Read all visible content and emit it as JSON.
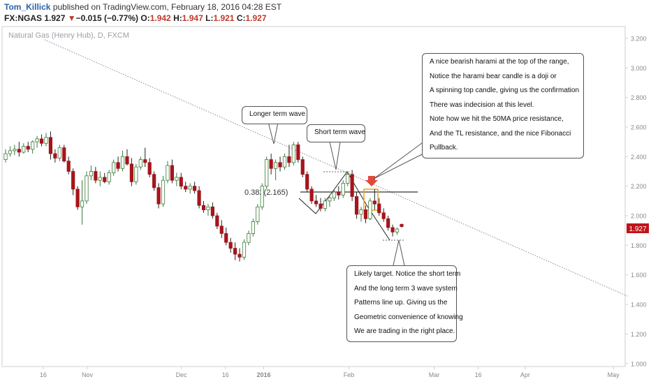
{
  "header": {
    "author": "Tom_Killick",
    "published": "published on TradingView.com, February 18, 2016 04:28 EST",
    "symbol": "FX:NGAS",
    "last": "1.927",
    "change": "−0.015 (−0.77%)",
    "o_label": "O:",
    "o_value": "1.942",
    "h_label": "H:",
    "h_value": "1.947",
    "l_label": "L:",
    "l_value": "1.921",
    "c_label": "C:",
    "c_value": "1.927",
    "down_arrow": "▼"
  },
  "watermark": "Natural Gas (Henry Hub), D, FXCM",
  "price_tag": "1.927",
  "fib_label": "0.382(2.165)",
  "annotations": {
    "longer_wave": "Longer term wave",
    "short_wave": "Short term wave",
    "harami": [
      "A nice bearish harami at the top of the range,",
      "Notice the harami bear candle is a doji or",
      "A spinning top candle, giving us the confirmation",
      "There was indecision at this level.",
      "Note how we hit the 50MA price resistance,",
      "And the TL resistance, and the nice Fibonacci",
      "Pullback."
    ],
    "target": [
      "Likely target. Notice the short term",
      "And the long term 3 wave system",
      "Patterns line up. Giving us the",
      "Geometric convenience of knowing",
      "We are trading in the right place."
    ]
  },
  "colors": {
    "up": "#ffffff",
    "up_border": "#3a7a3a",
    "down": "#a5151b",
    "axis_text": "#888888",
    "price_tag": "#c0141b",
    "highlight_box": "#f0a020"
  },
  "chart_data": {
    "type": "candlestick",
    "title": "Natural Gas (Henry Hub), D, FXCM",
    "symbol": "FX:NGAS",
    "ylim": [
      0.98,
      3.28
    ],
    "yticks": [
      "3.200",
      "3.000",
      "2.800",
      "2.600",
      "2.400",
      "2.200",
      "2.000",
      "1.800",
      "1.600",
      "1.400",
      "1.200",
      "1.000"
    ],
    "ytick_values": [
      3.2,
      3.0,
      2.8,
      2.6,
      2.4,
      2.2,
      2.0,
      1.8,
      1.6,
      1.4,
      1.2,
      1.0
    ],
    "xticks": [
      "16",
      "Nov",
      "Dec",
      "16",
      "2016",
      "Feb",
      "Mar",
      "16",
      "Apr",
      "May"
    ],
    "xtick_days": [
      14,
      29,
      61,
      76,
      89,
      118,
      147,
      162,
      178,
      208
    ],
    "xlim_days": [
      0,
      212
    ],
    "last_price": 1.927,
    "fib_level": 2.165,
    "candles": [
      {
        "o": 2.38,
        "h": 2.45,
        "l": 2.36,
        "c": 2.42
      },
      {
        "o": 2.42,
        "h": 2.47,
        "l": 2.4,
        "c": 2.44
      },
      {
        "o": 2.44,
        "h": 2.48,
        "l": 2.41,
        "c": 2.45
      },
      {
        "o": 2.45,
        "h": 2.5,
        "l": 2.4,
        "c": 2.43
      },
      {
        "o": 2.43,
        "h": 2.49,
        "l": 2.42,
        "c": 2.47
      },
      {
        "o": 2.47,
        "h": 2.5,
        "l": 2.43,
        "c": 2.45
      },
      {
        "o": 2.45,
        "h": 2.51,
        "l": 2.42,
        "c": 2.5
      },
      {
        "o": 2.5,
        "h": 2.54,
        "l": 2.46,
        "c": 2.52
      },
      {
        "o": 2.52,
        "h": 2.55,
        "l": 2.47,
        "c": 2.49
      },
      {
        "o": 2.49,
        "h": 2.56,
        "l": 2.47,
        "c": 2.53
      },
      {
        "o": 2.53,
        "h": 2.57,
        "l": 2.38,
        "c": 2.42
      },
      {
        "o": 2.42,
        "h": 2.45,
        "l": 2.36,
        "c": 2.39
      },
      {
        "o": 2.39,
        "h": 2.48,
        "l": 2.37,
        "c": 2.46
      },
      {
        "o": 2.46,
        "h": 2.48,
        "l": 2.36,
        "c": 2.37
      },
      {
        "o": 2.37,
        "h": 2.4,
        "l": 2.28,
        "c": 2.3
      },
      {
        "o": 2.3,
        "h": 2.32,
        "l": 2.14,
        "c": 2.18
      },
      {
        "o": 2.18,
        "h": 2.2,
        "l": 2.04,
        "c": 2.06
      },
      {
        "o": 2.06,
        "h": 2.24,
        "l": 1.94,
        "c": 2.1
      },
      {
        "o": 2.1,
        "h": 2.3,
        "l": 2.08,
        "c": 2.27
      },
      {
        "o": 2.27,
        "h": 2.34,
        "l": 2.24,
        "c": 2.3
      },
      {
        "o": 2.3,
        "h": 2.33,
        "l": 2.22,
        "c": 2.24
      },
      {
        "o": 2.24,
        "h": 2.3,
        "l": 2.2,
        "c": 2.26
      },
      {
        "o": 2.26,
        "h": 2.29,
        "l": 2.22,
        "c": 2.23
      },
      {
        "o": 2.23,
        "h": 2.31,
        "l": 2.21,
        "c": 2.29
      },
      {
        "o": 2.29,
        "h": 2.38,
        "l": 2.27,
        "c": 2.36
      },
      {
        "o": 2.36,
        "h": 2.4,
        "l": 2.3,
        "c": 2.32
      },
      {
        "o": 2.32,
        "h": 2.44,
        "l": 2.3,
        "c": 2.4
      },
      {
        "o": 2.4,
        "h": 2.45,
        "l": 2.34,
        "c": 2.35
      },
      {
        "o": 2.35,
        "h": 2.39,
        "l": 2.2,
        "c": 2.23
      },
      {
        "o": 2.23,
        "h": 2.35,
        "l": 2.21,
        "c": 2.33
      },
      {
        "o": 2.33,
        "h": 2.4,
        "l": 2.31,
        "c": 2.38
      },
      {
        "o": 2.38,
        "h": 2.46,
        "l": 2.33,
        "c": 2.36
      },
      {
        "o": 2.36,
        "h": 2.39,
        "l": 2.26,
        "c": 2.28
      },
      {
        "o": 2.28,
        "h": 2.3,
        "l": 2.17,
        "c": 2.19
      },
      {
        "o": 2.19,
        "h": 2.22,
        "l": 2.05,
        "c": 2.08
      },
      {
        "o": 2.08,
        "h": 2.27,
        "l": 2.06,
        "c": 2.24
      },
      {
        "o": 2.24,
        "h": 2.37,
        "l": 2.22,
        "c": 2.34
      },
      {
        "o": 2.34,
        "h": 2.38,
        "l": 2.22,
        "c": 2.24
      },
      {
        "o": 2.24,
        "h": 2.29,
        "l": 2.2,
        "c": 2.26
      },
      {
        "o": 2.26,
        "h": 2.29,
        "l": 2.18,
        "c": 2.2
      },
      {
        "o": 2.2,
        "h": 2.23,
        "l": 2.16,
        "c": 2.18
      },
      {
        "o": 2.18,
        "h": 2.22,
        "l": 2.15,
        "c": 2.2
      },
      {
        "o": 2.2,
        "h": 2.23,
        "l": 2.15,
        "c": 2.17
      },
      {
        "o": 2.17,
        "h": 2.2,
        "l": 2.05,
        "c": 2.07
      },
      {
        "o": 2.07,
        "h": 2.1,
        "l": 2.02,
        "c": 2.04
      },
      {
        "o": 2.04,
        "h": 2.08,
        "l": 2.0,
        "c": 2.06
      },
      {
        "o": 2.06,
        "h": 2.09,
        "l": 1.98,
        "c": 2.0
      },
      {
        "o": 2.0,
        "h": 2.02,
        "l": 1.91,
        "c": 1.93
      },
      {
        "o": 1.93,
        "h": 1.97,
        "l": 1.85,
        "c": 1.88
      },
      {
        "o": 1.88,
        "h": 1.92,
        "l": 1.8,
        "c": 1.82
      },
      {
        "o": 1.82,
        "h": 1.85,
        "l": 1.75,
        "c": 1.78
      },
      {
        "o": 1.78,
        "h": 1.82,
        "l": 1.7,
        "c": 1.74
      },
      {
        "o": 1.74,
        "h": 1.78,
        "l": 1.69,
        "c": 1.72
      },
      {
        "o": 1.72,
        "h": 1.84,
        "l": 1.7,
        "c": 1.82
      },
      {
        "o": 1.82,
        "h": 1.9,
        "l": 1.8,
        "c": 1.88
      },
      {
        "o": 1.88,
        "h": 1.98,
        "l": 1.86,
        "c": 1.96
      },
      {
        "o": 1.96,
        "h": 2.08,
        "l": 1.94,
        "c": 2.06
      },
      {
        "o": 2.06,
        "h": 2.22,
        "l": 2.04,
        "c": 2.2
      },
      {
        "o": 2.2,
        "h": 2.4,
        "l": 2.18,
        "c": 2.38
      },
      {
        "o": 2.38,
        "h": 2.42,
        "l": 2.28,
        "c": 2.32
      },
      {
        "o": 2.32,
        "h": 2.38,
        "l": 2.24,
        "c": 2.36
      },
      {
        "o": 2.36,
        "h": 2.4,
        "l": 2.3,
        "c": 2.33
      },
      {
        "o": 2.33,
        "h": 2.42,
        "l": 2.31,
        "c": 2.4
      },
      {
        "o": 2.4,
        "h": 2.48,
        "l": 2.33,
        "c": 2.36
      },
      {
        "o": 2.36,
        "h": 2.5,
        "l": 2.34,
        "c": 2.48
      },
      {
        "o": 2.48,
        "h": 2.5,
        "l": 2.36,
        "c": 2.38
      },
      {
        "o": 2.38,
        "h": 2.4,
        "l": 2.26,
        "c": 2.28
      },
      {
        "o": 2.28,
        "h": 2.3,
        "l": 2.16,
        "c": 2.18
      },
      {
        "o": 2.18,
        "h": 2.2,
        "l": 2.08,
        "c": 2.1
      },
      {
        "o": 2.1,
        "h": 2.14,
        "l": 2.06,
        "c": 2.08
      },
      {
        "o": 2.08,
        "h": 2.12,
        "l": 2.03,
        "c": 2.05
      },
      {
        "o": 2.05,
        "h": 2.12,
        "l": 2.03,
        "c": 2.1
      },
      {
        "o": 2.1,
        "h": 2.14,
        "l": 2.06,
        "c": 2.12
      },
      {
        "o": 2.12,
        "h": 2.18,
        "l": 2.1,
        "c": 2.16
      },
      {
        "o": 2.16,
        "h": 2.2,
        "l": 2.11,
        "c": 2.14
      },
      {
        "o": 2.14,
        "h": 2.24,
        "l": 2.12,
        "c": 2.22
      },
      {
        "o": 2.22,
        "h": 2.3,
        "l": 2.2,
        "c": 2.28
      },
      {
        "o": 2.28,
        "h": 2.31,
        "l": 2.1,
        "c": 2.13
      },
      {
        "o": 2.13,
        "h": 2.16,
        "l": 1.98,
        "c": 2.01
      },
      {
        "o": 2.01,
        "h": 2.06,
        "l": 1.96,
        "c": 2.04
      },
      {
        "o": 2.04,
        "h": 2.07,
        "l": 1.95,
        "c": 1.98
      },
      {
        "o": 1.98,
        "h": 2.12,
        "l": 1.97,
        "c": 2.1
      },
      {
        "o": 2.1,
        "h": 2.18,
        "l": 2.04,
        "c": 2.08
      },
      {
        "o": 2.08,
        "h": 2.12,
        "l": 2.0,
        "c": 2.02
      },
      {
        "o": 2.02,
        "h": 2.05,
        "l": 1.96,
        "c": 1.98
      },
      {
        "o": 1.98,
        "h": 2.0,
        "l": 1.9,
        "c": 1.92
      },
      {
        "o": 1.92,
        "h": 1.94,
        "l": 1.86,
        "c": 1.89
      },
      {
        "o": 1.89,
        "h": 1.92,
        "l": 1.87,
        "c": 1.91
      },
      {
        "o": 1.942,
        "h": 1.947,
        "l": 1.921,
        "c": 1.927
      }
    ]
  }
}
